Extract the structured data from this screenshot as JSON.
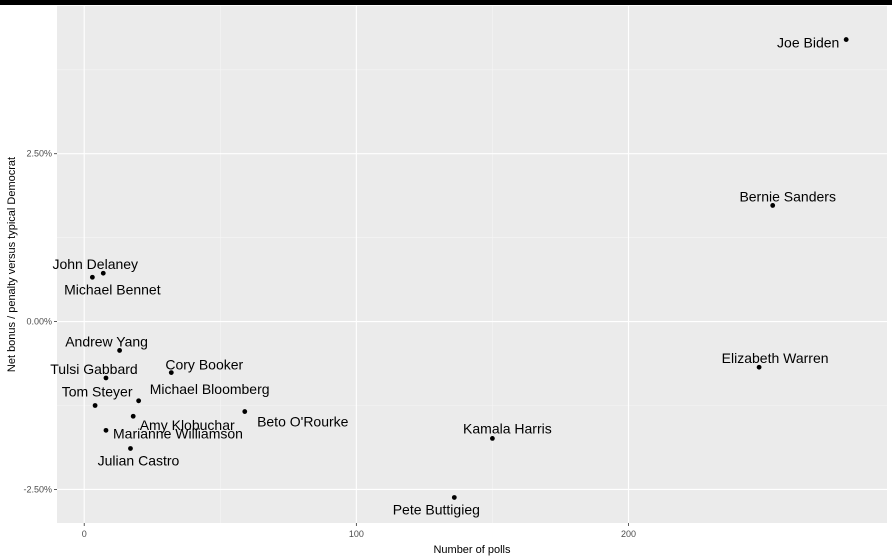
{
  "chart_data": {
    "type": "scatter",
    "xlabel": "Number of polls",
    "ylabel": "Net bonus / penalty versus typical Democrat",
    "xlim": [
      -10,
      295
    ],
    "ylim": [
      -3.0,
      4.7
    ],
    "x_ticks": [
      0,
      100,
      200
    ],
    "x_tick_labels": [
      "0",
      "100",
      "200"
    ],
    "y_ticks": [
      -2.5,
      0.0,
      2.5
    ],
    "y_tick_labels": [
      "-2.50%",
      "0.00%",
      "2.50%"
    ],
    "grid": true,
    "points": [
      {
        "label": "Joe Biden",
        "x": 280,
        "y": 4.2
      },
      {
        "label": "Bernie Sanders",
        "x": 253,
        "y": 1.73
      },
      {
        "label": "Elizabeth Warren",
        "x": 248,
        "y": -0.68
      },
      {
        "label": "Kamala Harris",
        "x": 150,
        "y": -1.74
      },
      {
        "label": "Pete Buttigieg",
        "x": 136,
        "y": -2.62
      },
      {
        "label": "Beto O'Rourke",
        "x": 59,
        "y": -1.34
      },
      {
        "label": "Cory Booker",
        "x": 32,
        "y": -0.76
      },
      {
        "label": "Michael Bloomberg",
        "x": 20,
        "y": -1.18
      },
      {
        "label": "Amy Klobuchar",
        "x": 18,
        "y": -1.41
      },
      {
        "label": "Julian Castro",
        "x": 17,
        "y": -1.89
      },
      {
        "label": "Andrew Yang",
        "x": 13,
        "y": -0.43
      },
      {
        "label": "Tulsi Gabbard",
        "x": 8,
        "y": -0.84
      },
      {
        "label": "Marianne Williamson",
        "x": 8,
        "y": -1.62
      },
      {
        "label": "John Delaney",
        "x": 7,
        "y": 0.72
      },
      {
        "label": "Michael Bennet",
        "x": 3,
        "y": 0.66
      },
      {
        "label": "Tom Steyer",
        "x": 4,
        "y": -1.25
      }
    ]
  }
}
